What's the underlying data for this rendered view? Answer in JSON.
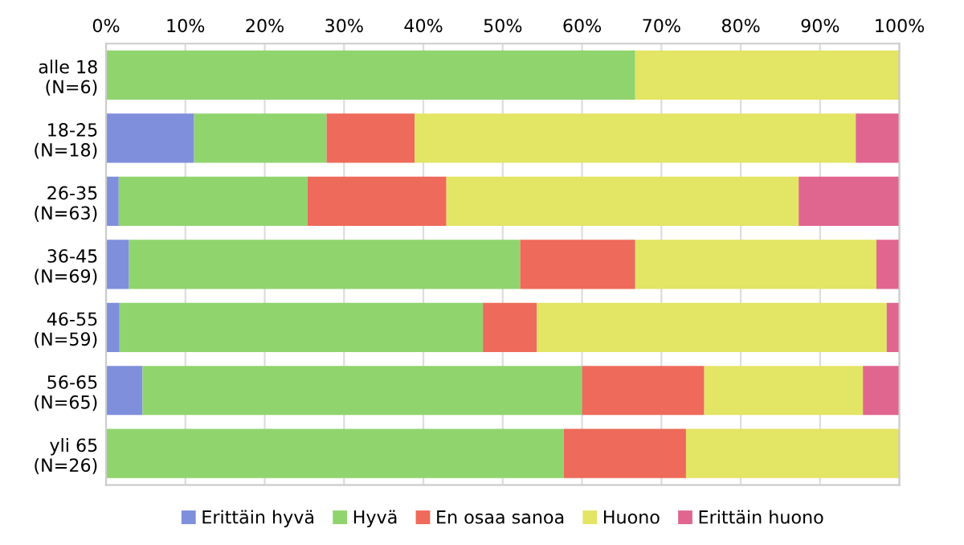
{
  "chart_data": {
    "type": "bar",
    "orientation": "horizontal",
    "stacked": true,
    "categories": [
      "alle 18\n(N=6)",
      "18-25\n(N=18)",
      "26-35\n(N=63)",
      "36-45\n(N=69)",
      "46-55\n(N=59)",
      "56-65\n(N=65)",
      "yli 65\n(N=26)"
    ],
    "series": [
      {
        "name": "Erittäin hyvä",
        "color": "#7f8fdc",
        "values": [
          0,
          11.1,
          1.6,
          2.9,
          1.7,
          4.6,
          0
        ]
      },
      {
        "name": "Hyvä",
        "color": "#90d46e",
        "values": [
          66.7,
          16.7,
          23.8,
          49.3,
          45.8,
          55.4,
          57.7
        ]
      },
      {
        "name": "En osaa sanoa",
        "color": "#ee6a5a",
        "values": [
          0,
          11.1,
          17.5,
          14.5,
          6.8,
          15.4,
          15.4
        ]
      },
      {
        "name": "Huono",
        "color": "#e3e564",
        "values": [
          33.3,
          55.6,
          44.4,
          30.4,
          44.1,
          20.0,
          26.9
        ]
      },
      {
        "name": "Erittäin huono",
        "color": "#e0668f",
        "values": [
          0,
          5.6,
          12.7,
          2.9,
          1.7,
          4.6,
          0
        ]
      }
    ],
    "xlim": [
      0,
      100
    ],
    "xticks": [
      {
        "value": 0,
        "label": "0%"
      },
      {
        "value": 10,
        "label": "10%"
      },
      {
        "value": 20,
        "label": "20%"
      },
      {
        "value": 30,
        "label": "30%"
      },
      {
        "value": 40,
        "label": "40%"
      },
      {
        "value": 50,
        "label": "50%"
      },
      {
        "value": 60,
        "label": "60%"
      },
      {
        "value": 70,
        "label": "70%"
      },
      {
        "value": 80,
        "label": "80%"
      },
      {
        "value": 90,
        "label": "90%"
      },
      {
        "value": 100,
        "label": "100%"
      }
    ],
    "grid": "x",
    "legend": "bottom"
  }
}
